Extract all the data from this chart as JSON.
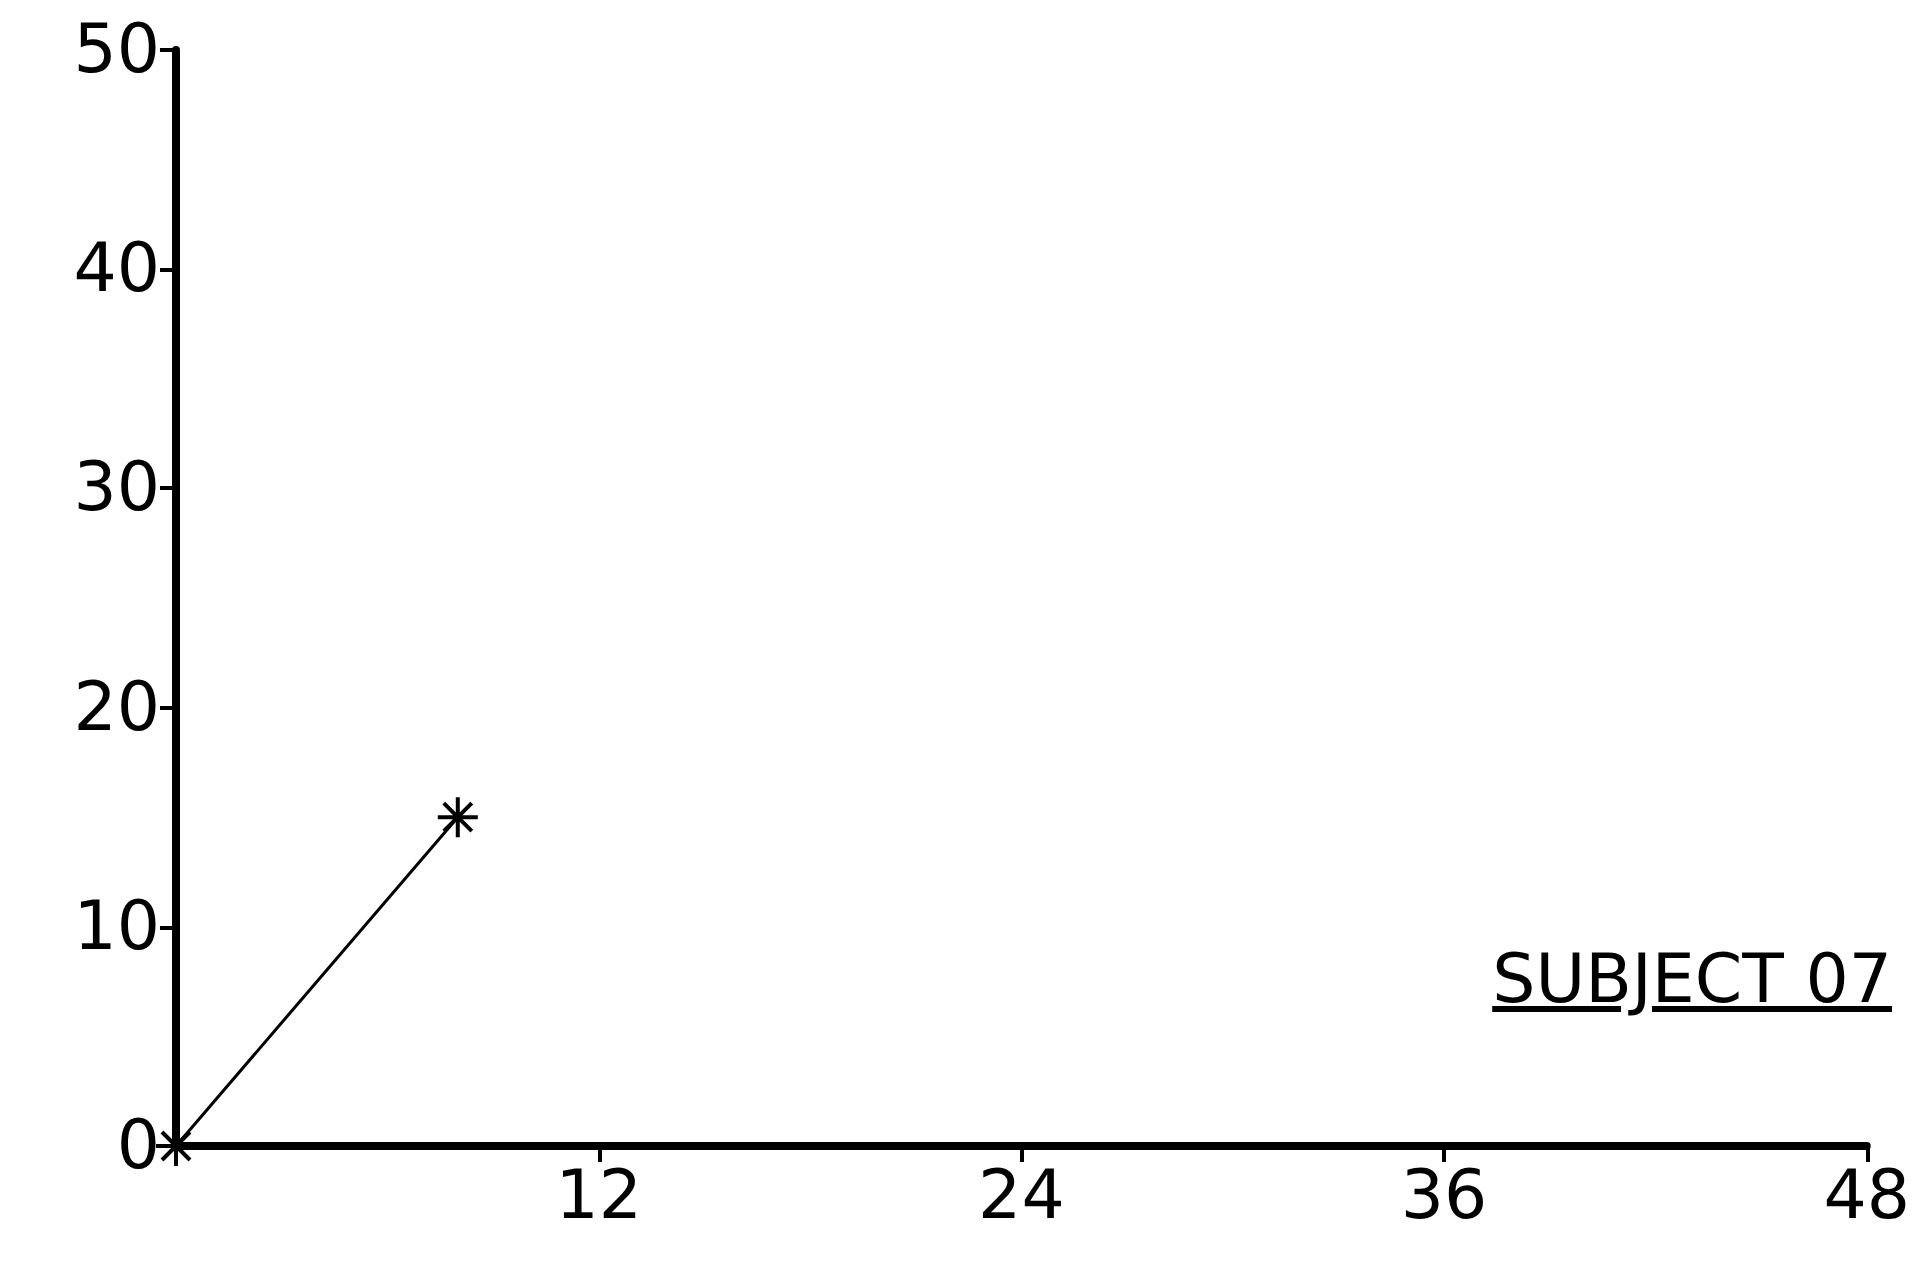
{
  "chart_data": {
    "type": "line",
    "x": [
      0,
      8
    ],
    "values": [
      0,
      15
    ],
    "color": "#000000",
    "marker": "cross",
    "line_style": "solid",
    "grid": false,
    "xlim": [
      0,
      48
    ],
    "xticks": [
      {
        "value": 0,
        "label": null
      },
      12,
      24,
      36,
      48
    ],
    "ylim": [
      0,
      50
    ],
    "yticks": [
      0,
      10,
      20,
      30,
      40,
      50
    ],
    "annotations": [
      "SUBJECT 07"
    ]
  }
}
